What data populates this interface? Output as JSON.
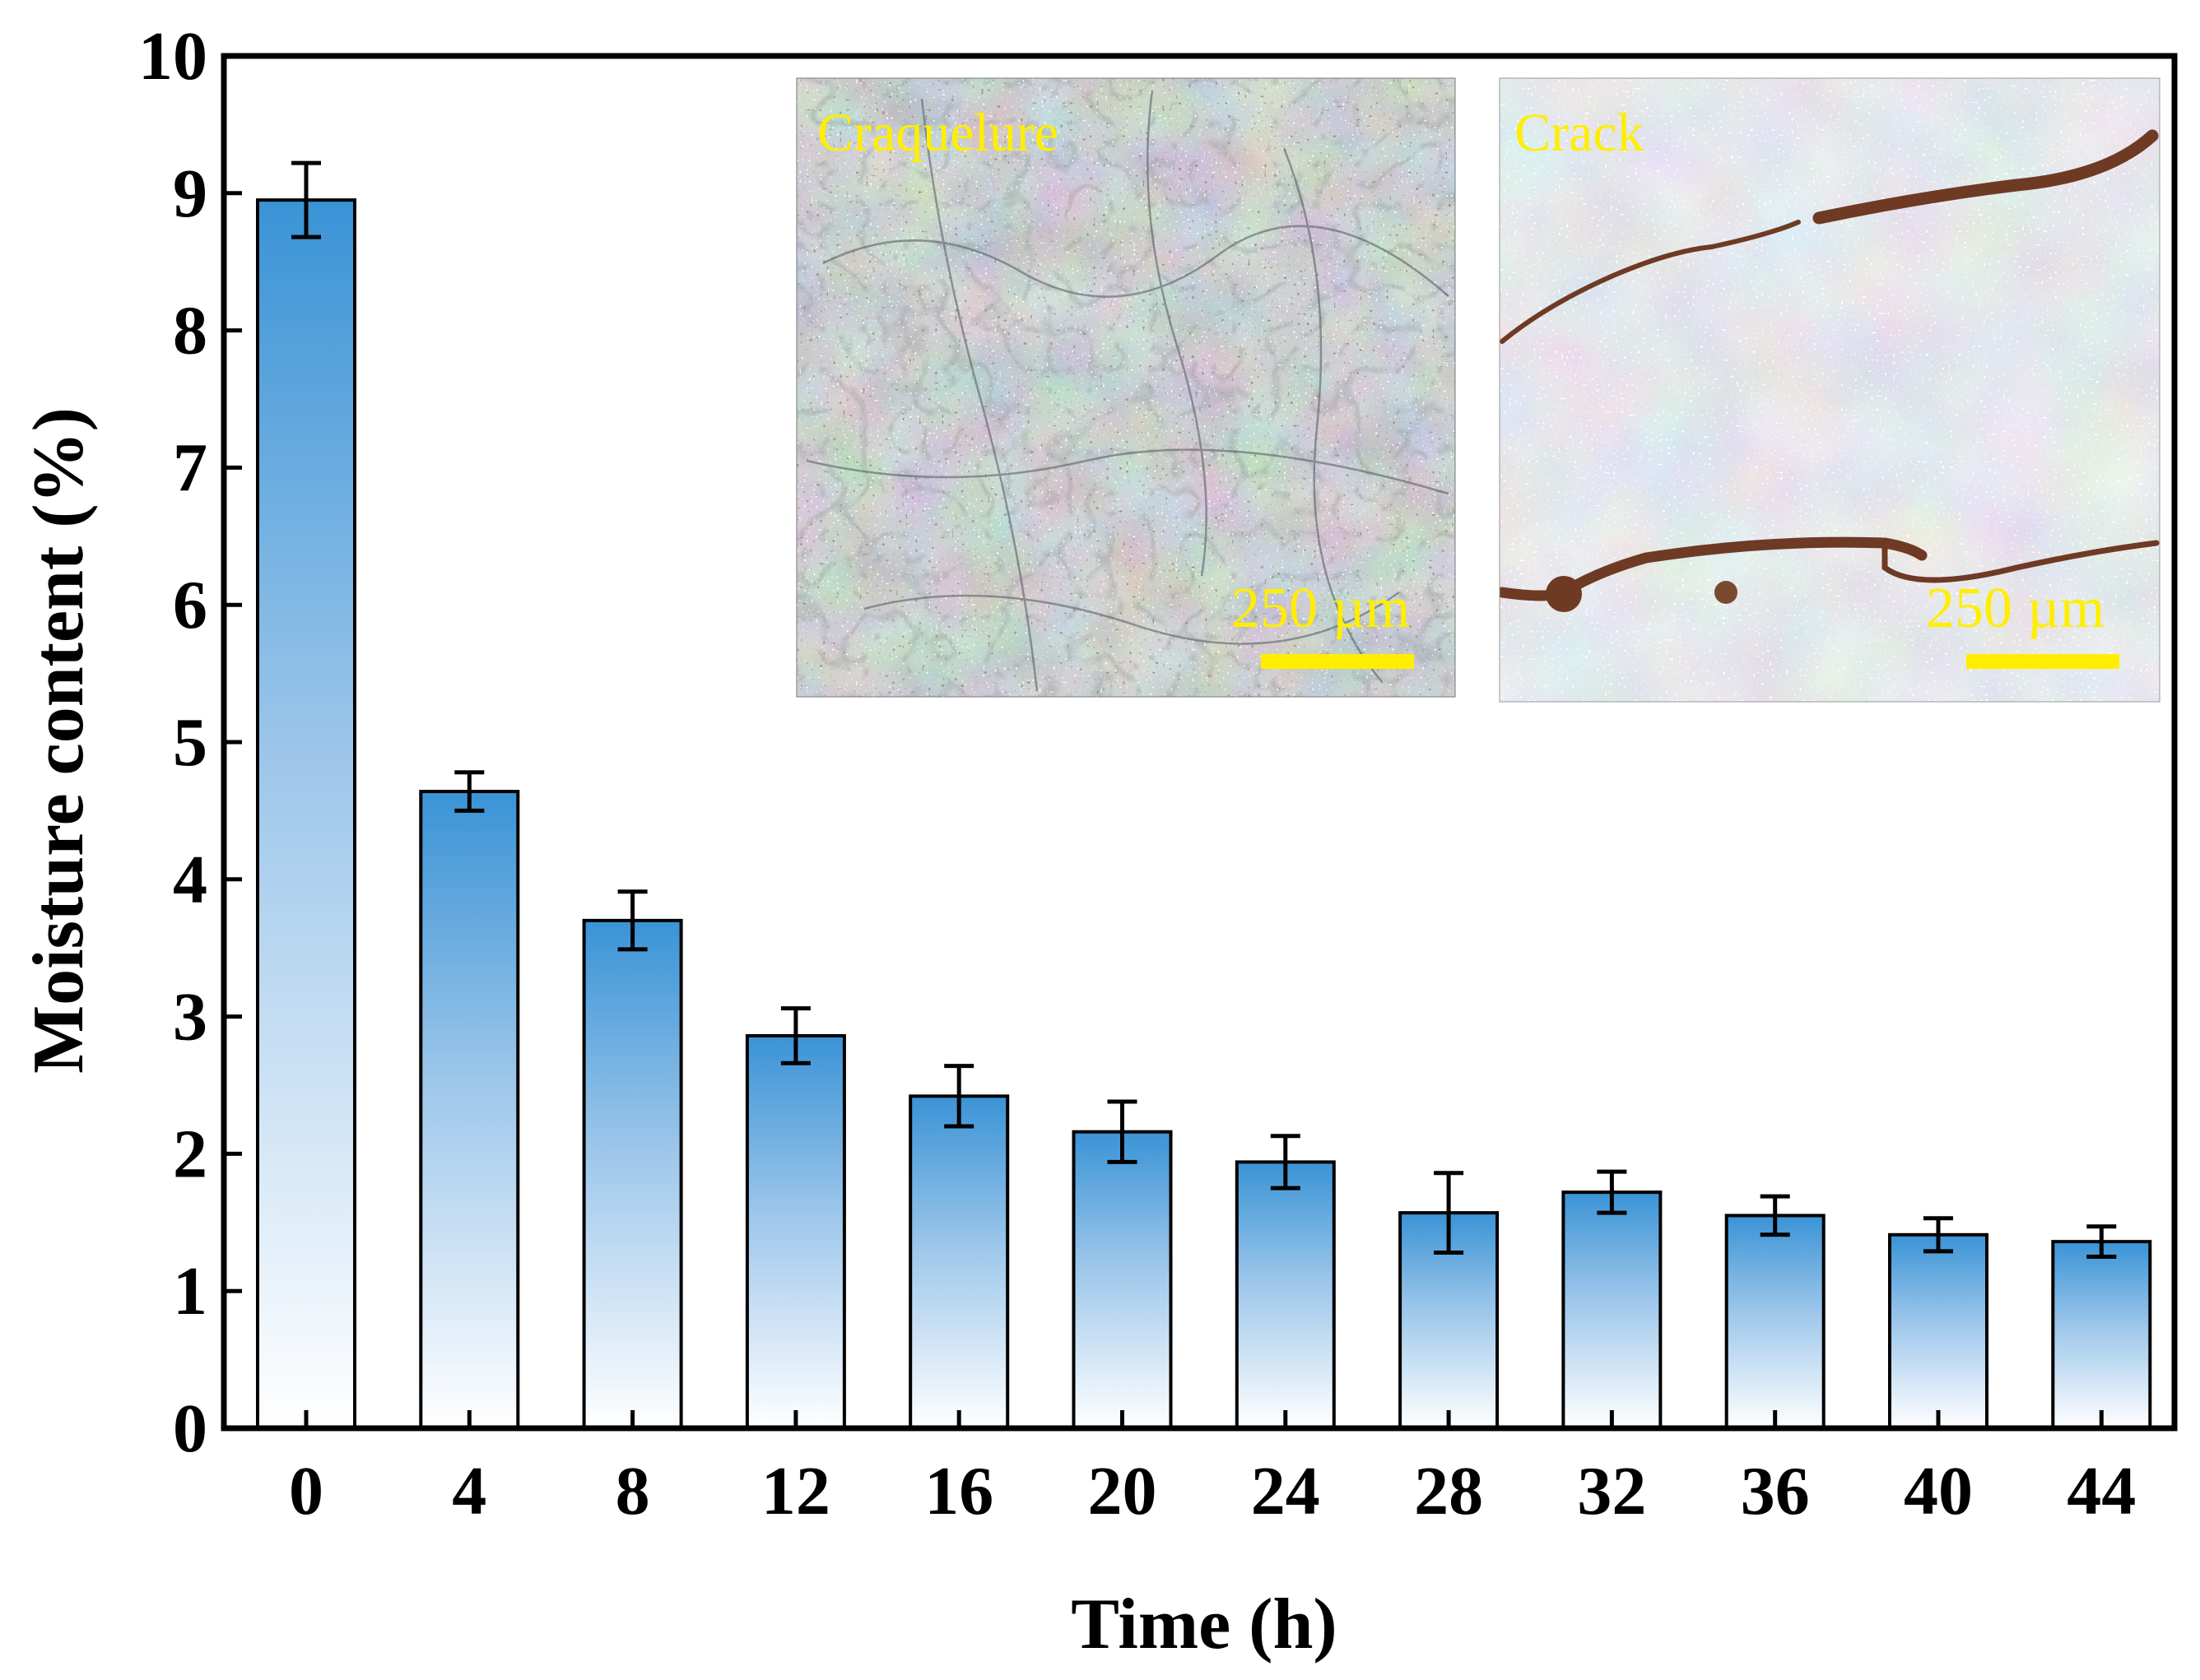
{
  "chart_data": {
    "type": "bar",
    "xlabel": "Time (h)",
    "ylabel": "Moisture content (%)",
    "ylim": [
      0,
      10
    ],
    "yticks": [
      0,
      1,
      2,
      3,
      4,
      5,
      6,
      7,
      8,
      9,
      10
    ],
    "categories": [
      "0",
      "4",
      "8",
      "12",
      "16",
      "20",
      "24",
      "28",
      "32",
      "36",
      "40",
      "44"
    ],
    "values": [
      8.95,
      4.64,
      3.7,
      2.86,
      2.42,
      2.16,
      1.94,
      1.57,
      1.72,
      1.55,
      1.41,
      1.36
    ],
    "errors": [
      0.27,
      0.14,
      0.21,
      0.2,
      0.22,
      0.22,
      0.19,
      0.29,
      0.15,
      0.14,
      0.12,
      0.11
    ],
    "grid": false,
    "bar_color_top": "#3a93d6",
    "bar_color_bottom": "#ffffff"
  },
  "insets": [
    {
      "label": "Craquelure",
      "scale_label": "250 µm"
    },
    {
      "label": "Crack",
      "scale_label": "250 µm"
    }
  ],
  "colors": {
    "label_yellow": "#ffee00",
    "scale_bar_yellow": "#ffee00",
    "craquelure_surface": "#9aa2a0",
    "crack_surface": "#cbd1d6",
    "crack_line": "#6e3a24"
  }
}
